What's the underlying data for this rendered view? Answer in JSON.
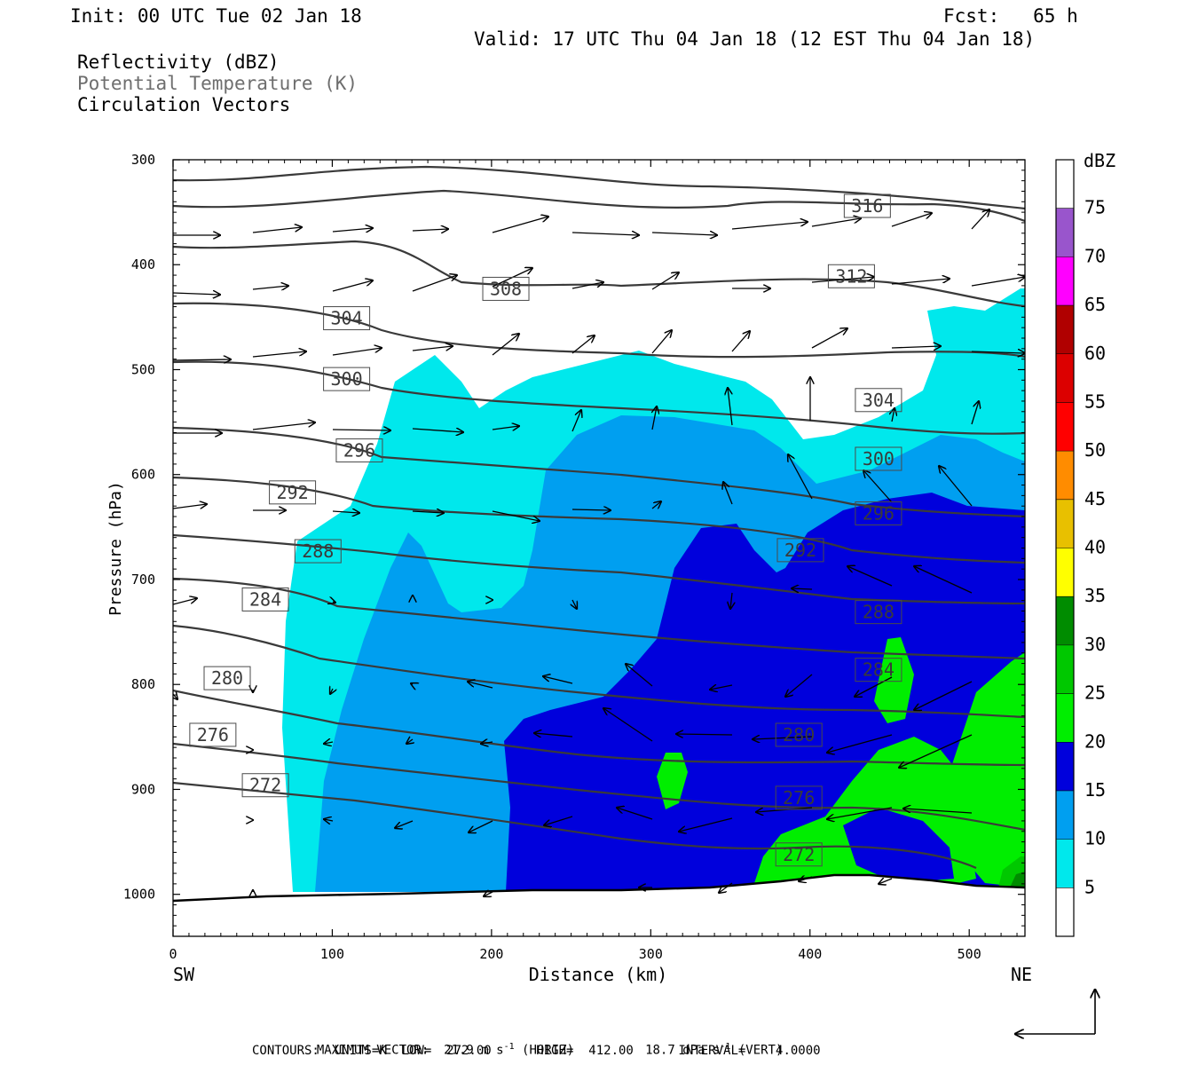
{
  "header": {
    "init": "Init: 00 UTC Tue 02 Jan 18",
    "fcst": "Fcst:   65 h",
    "valid": "Valid: 17 UTC Thu 04 Jan 18 (12 EST Thu 04 Jan 18)"
  },
  "fields": [
    {
      "label": "Reflectivity (dBZ)",
      "color": "#000000"
    },
    {
      "label": "Potential Temperature (K)",
      "color": "#6e6e6e"
    },
    {
      "label": "Circulation Vectors",
      "color": "#000000"
    }
  ],
  "chart_data": {
    "type": "cross-section",
    "xlabel": "Distance (km)",
    "ylabel": "Pressure (hPa)",
    "xlim": [
      0,
      535
    ],
    "ylim": [
      1040,
      300
    ],
    "x_ticks": [
      0,
      100,
      200,
      300,
      400,
      500
    ],
    "y_ticks": [
      300,
      400,
      500,
      600,
      700,
      800,
      900,
      1000
    ],
    "x_end_labels": {
      "left": "SW",
      "right": "NE"
    },
    "colorbar": {
      "unit": "dBZ",
      "levels": [
        5,
        10,
        15,
        20,
        25,
        30,
        35,
        40,
        45,
        50,
        55,
        60,
        65,
        70,
        75
      ],
      "colors": [
        "#ffffff",
        "#00e8ec",
        "#009ff0",
        "#0000dc",
        "#00ee00",
        "#00c800",
        "#008c00",
        "#ffff00",
        "#e8c000",
        "#ff8c00",
        "#ff0000",
        "#dc0000",
        "#b00000",
        "#ff00ff",
        "#9955cc",
        "#ffffff"
      ]
    },
    "theta_labels": [
      {
        "value": "316",
        "x": 436,
        "p": 344
      },
      {
        "value": "312",
        "x": 426,
        "p": 411
      },
      {
        "value": "308",
        "x": 209,
        "p": 423
      },
      {
        "value": "304",
        "x": 109,
        "p": 451
      },
      {
        "value": "304",
        "x": 443,
        "p": 529
      },
      {
        "value": "300",
        "x": 109,
        "p": 509
      },
      {
        "value": "300",
        "x": 443,
        "p": 585
      },
      {
        "value": "296",
        "x": 117,
        "p": 577
      },
      {
        "value": "296",
        "x": 443,
        "p": 637
      },
      {
        "value": "292",
        "x": 75,
        "p": 617
      },
      {
        "value": "292",
        "x": 394,
        "p": 672
      },
      {
        "value": "288",
        "x": 91,
        "p": 673
      },
      {
        "value": "288",
        "x": 443,
        "p": 731
      },
      {
        "value": "284",
        "x": 58,
        "p": 719
      },
      {
        "value": "284",
        "x": 443,
        "p": 786
      },
      {
        "value": "280",
        "x": 34,
        "p": 794
      },
      {
        "value": "280",
        "x": 393,
        "p": 848
      },
      {
        "value": "276",
        "x": 25,
        "p": 848
      },
      {
        "value": "276",
        "x": 393,
        "p": 908
      },
      {
        "value": "272",
        "x": 58,
        "p": 896
      },
      {
        "value": "272",
        "x": 393,
        "p": 962
      }
    ]
  },
  "footer": {
    "max_vector": "MAXIMUM VECTOR:  21.9 m s",
    "horiz": " (HORIZ)",
    "vert_val": "18.7 dPa s",
    "vert": " (VERT)",
    "exp": "-1",
    "contours": "CONTOURS:  UNITS=K  LOW=  272.00      HIGH=  412.00      INTERVAL=    4.0000"
  }
}
